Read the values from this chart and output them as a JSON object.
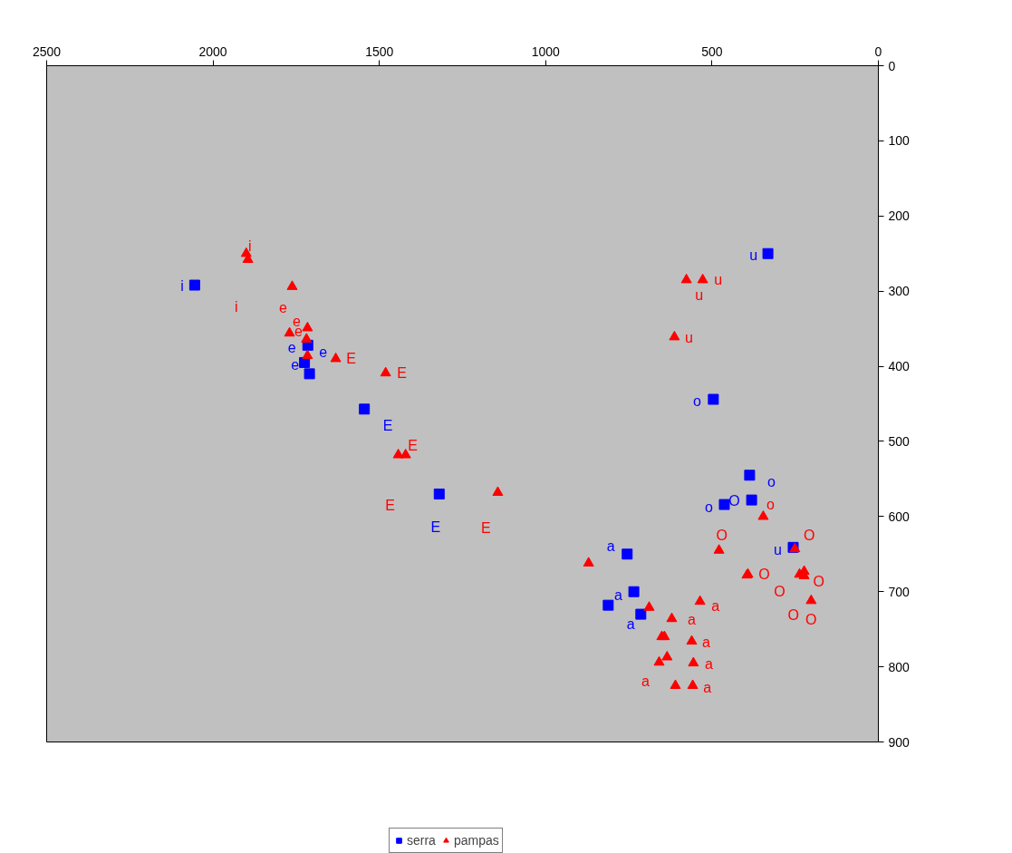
{
  "chart_data": {
    "type": "scatter",
    "xlim": [
      2500,
      0
    ],
    "xticks": [
      2500,
      2000,
      1500,
      1000,
      500,
      0
    ],
    "ylim": [
      900,
      0
    ],
    "yticks": [
      0,
      100,
      200,
      300,
      400,
      500,
      600,
      700,
      800,
      900
    ],
    "grid": false,
    "legend": "bottom",
    "series": [
      {
        "name": "serra",
        "color": "#0000ff",
        "marker": "square",
        "x": [
          2055,
          1715,
          1725,
          1710,
          1545,
          1320,
          755,
          735,
          812,
          714,
          332,
          496,
          387,
          463,
          381,
          256
        ],
        "values": [
          292,
          372,
          395,
          410,
          457,
          570,
          650,
          700,
          718,
          730,
          250,
          444,
          545,
          584,
          578,
          641
        ],
        "value_labels": [
          "i",
          "e",
          "e",
          "e",
          "E",
          "E",
          "a",
          null,
          "a",
          "a",
          "u",
          "o",
          "o",
          "o",
          "O",
          "u"
        ]
      },
      {
        "name": "pampas",
        "color": "#ff0000",
        "marker": "triangle",
        "x": [
          1900,
          1895,
          1762,
          1770,
          1716,
          1719,
          1716,
          1631,
          1481,
          1443,
          1421,
          1144,
          871,
          479,
          395,
          536,
          689,
          621,
          643,
          651,
          561,
          635,
          659,
          556,
          610,
          558,
          577,
          528,
          613,
          346,
          251,
          392,
          223,
          237,
          223,
          202
        ],
        "values": [
          250,
          258,
          294,
          356,
          349,
          364,
          386,
          390,
          409,
          518,
          518,
          568,
          662,
          645,
          678,
          713,
          721,
          736,
          760,
          760,
          766,
          787,
          794,
          795,
          825,
          825,
          285,
          285,
          361,
          600,
          643,
          677,
          673,
          677,
          679,
          712
        ],
        "value_labels": [
          "i",
          "i",
          "e",
          "e",
          "e",
          null,
          null,
          "E",
          "E",
          "E",
          "E",
          "E",
          null,
          "O",
          null,
          "a",
          null,
          "a",
          null,
          null,
          "a",
          null,
          "a",
          "a",
          null,
          "a",
          "u",
          "u",
          "u",
          "o",
          "O",
          "O",
          "O",
          "O",
          "O",
          "O"
        ]
      }
    ]
  }
}
